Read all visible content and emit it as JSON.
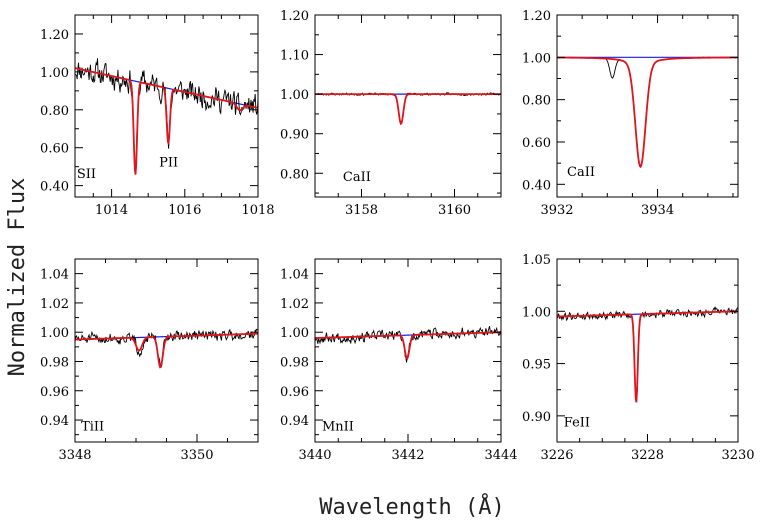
{
  "figure": {
    "ylabel": "Normalized Flux",
    "xlabel": "Wavelength (Å)"
  },
  "colors": {
    "observed": "#000000",
    "model": "#e0141c",
    "continuum": "#1a1adc"
  },
  "chart_data": [
    {
      "type": "line",
      "xlim": [
        1013,
        1018
      ],
      "ylim": [
        0.34,
        1.3
      ],
      "xticks": [
        1014,
        1016,
        1018
      ],
      "yticks": [
        0.4,
        0.6,
        0.8,
        1.0,
        1.2
      ],
      "xtick_labels": [
        "1014",
        "1016",
        "1018"
      ],
      "ytick_labels": [
        "0.40",
        "0.60",
        "0.80",
        "1.00",
        "1.20"
      ],
      "annotations": [
        {
          "text": "SII",
          "x": 1013.05,
          "y": 0.44
        },
        {
          "text": "PII",
          "x": 1015.3,
          "y": 0.5
        }
      ],
      "continuum": {
        "x0": 1013,
        "y0": 1.02,
        "x1": 1018,
        "y1": 0.81
      },
      "model_lines": [
        {
          "center": 1014.65,
          "depth": 0.52,
          "width": 0.045
        },
        {
          "center": 1015.55,
          "depth": 0.32,
          "width": 0.045
        },
        {
          "center": 1017.5,
          "depth": 0.04,
          "width": 0.08
        }
      ],
      "noise": 0.09,
      "seed": 11
    },
    {
      "type": "line",
      "xlim": [
        3157,
        3161
      ],
      "ylim": [
        0.74,
        1.2
      ],
      "xticks": [
        3158,
        3160
      ],
      "yticks": [
        0.8,
        0.9,
        1.0,
        1.1,
        1.2
      ],
      "xtick_labels": [
        "3158",
        "3160"
      ],
      "ytick_labels": [
        "0.80",
        "0.90",
        "1.00",
        "1.10",
        "1.20"
      ],
      "annotations": [
        {
          "text": "CaII",
          "x": 3157.6,
          "y": 0.78
        }
      ],
      "continuum": {
        "x0": 3157,
        "y0": 1.0,
        "x1": 3161,
        "y1": 1.0
      },
      "model_lines": [
        {
          "center": 3158.85,
          "depth": 0.075,
          "width": 0.05
        }
      ],
      "noise": 0.004,
      "seed": 23
    },
    {
      "type": "line",
      "xlim": [
        3932,
        3935.6
      ],
      "ylim": [
        0.34,
        1.2
      ],
      "xticks": [
        3932,
        3934
      ],
      "yticks": [
        0.4,
        0.6,
        0.8,
        1.0,
        1.2
      ],
      "xtick_labels": [
        "3932",
        "3934"
      ],
      "ytick_labels": [
        "0.40",
        "0.60",
        "0.80",
        "1.00",
        "1.20"
      ],
      "annotations": [
        {
          "text": "CaII",
          "x": 3932.2,
          "y": 0.44
        }
      ],
      "continuum": {
        "x0": 3932,
        "y0": 1.0,
        "x1": 3935.6,
        "y1": 1.0
      },
      "model_lines": [
        {
          "center": 3933.66,
          "depth": 0.48,
          "width": 0.1,
          "wing": 0.22
        }
      ],
      "observed_extra_lines": [
        {
          "center": 3933.1,
          "depth": 0.09,
          "width": 0.05
        }
      ],
      "noise": 0.003,
      "seed": 37
    },
    {
      "type": "line",
      "xlim": [
        3348,
        3351
      ],
      "ylim": [
        0.925,
        1.05
      ],
      "xticks": [
        3348,
        3350
      ],
      "yticks": [
        0.94,
        0.96,
        0.98,
        1.0,
        1.02,
        1.04
      ],
      "xtick_labels": [
        "3348",
        "3350"
      ],
      "ytick_labels": [
        "0.94",
        "0.96",
        "0.98",
        "1.00",
        "1.02",
        "1.04"
      ],
      "annotations": [
        {
          "text": "TiII",
          "x": 3348.1,
          "y": 0.933
        }
      ],
      "continuum": {
        "x0": 3348,
        "y0": 0.995,
        "x1": 3351,
        "y1": 0.999
      },
      "model_lines": [
        {
          "center": 3349.05,
          "depth": 0.009,
          "width": 0.05
        },
        {
          "center": 3349.4,
          "depth": 0.021,
          "width": 0.04
        }
      ],
      "noise": 0.005,
      "seed": 51
    },
    {
      "type": "line",
      "xlim": [
        3440,
        3444
      ],
      "ylim": [
        0.925,
        1.05
      ],
      "xticks": [
        3440,
        3442,
        3444
      ],
      "yticks": [
        0.94,
        0.96,
        0.98,
        1.0,
        1.02,
        1.04
      ],
      "xtick_labels": [
        "3440",
        "3442",
        "3444"
      ],
      "ytick_labels": [
        "0.94",
        "0.96",
        "0.98",
        "1.00",
        "1.02",
        "1.04"
      ],
      "annotations": [
        {
          "text": "MnII",
          "x": 3440.15,
          "y": 0.933
        }
      ],
      "continuum": {
        "x0": 3440,
        "y0": 0.996,
        "x1": 3444,
        "y1": 1.0
      },
      "model_lines": [
        {
          "center": 3441.98,
          "depth": 0.016,
          "width": 0.05
        }
      ],
      "noise": 0.005,
      "seed": 67
    },
    {
      "type": "line",
      "xlim": [
        3226,
        3230
      ],
      "ylim": [
        0.875,
        1.05
      ],
      "xticks": [
        3226,
        3228,
        3230
      ],
      "yticks": [
        0.9,
        0.95,
        1.0,
        1.05
      ],
      "xtick_labels": [
        "3226",
        "3228",
        "3230"
      ],
      "ytick_labels": [
        "0.90",
        "0.95",
        "1.00",
        "1.05"
      ],
      "annotations": [
        {
          "text": "FeII",
          "x": 3226.15,
          "y": 0.89
        }
      ],
      "continuum": {
        "x0": 3226,
        "y0": 0.995,
        "x1": 3230,
        "y1": 1.0
      },
      "model_lines": [
        {
          "center": 3227.75,
          "depth": 0.085,
          "width": 0.035
        }
      ],
      "noise": 0.005,
      "seed": 79
    }
  ]
}
